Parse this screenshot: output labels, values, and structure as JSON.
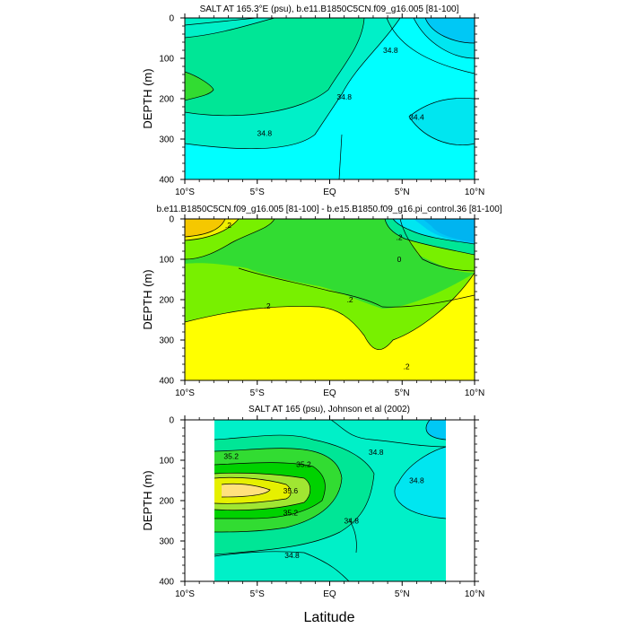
{
  "figure": {
    "xlabel": "Latitude"
  },
  "chart_data": [
    {
      "type": "contour",
      "title": "SALT AT 165.3°E (psu), b.e11.B1850C5CN.f09_g16.005 [81-100]",
      "xlabel": "",
      "ylabel": "DEPTH (m)",
      "xlim": [
        -10,
        10
      ],
      "ylim": [
        0,
        400
      ],
      "y_inverted": true,
      "xticks": [
        -10,
        -5,
        0,
        5,
        10
      ],
      "xticklabels": [
        "10°S",
        "5°S",
        "EQ",
        "5°N",
        "10°N"
      ],
      "yticks": [
        0,
        100,
        200,
        300,
        400
      ],
      "yticklabels": [
        "0",
        "100",
        "200",
        "300",
        "400"
      ],
      "contour_labels": [
        {
          "text": "34.8",
          "x": 4.2,
          "y": 80
        },
        {
          "text": "34.8",
          "x": 1.0,
          "y": 195
        },
        {
          "text": "34.8",
          "x": -4.5,
          "y": 285
        },
        {
          "text": "34.4",
          "x": 6.0,
          "y": 245
        }
      ]
    },
    {
      "type": "contour",
      "title": "b.e11.B1850C5CN.f09_g16.005 [81-100] - b.e15.B1850.f09_g16.pi_control.36 [81-100]",
      "xlabel": "",
      "ylabel": "DEPTH (m)",
      "xlim": [
        -10,
        10
      ],
      "ylim": [
        0,
        400
      ],
      "y_inverted": true,
      "xticks": [
        -10,
        -5,
        0,
        5,
        10
      ],
      "xticklabels": [
        "10°S",
        "5°S",
        "EQ",
        "5°N",
        "10°N"
      ],
      "yticks": [
        0,
        100,
        200,
        300,
        400
      ],
      "yticklabels": [
        "0",
        "100",
        "200",
        "300",
        "400"
      ],
      "contour_labels": [
        {
          "text": ".2",
          "x": -7.0,
          "y": 15
        },
        {
          "text": ".2",
          "x": 4.8,
          "y": 45
        },
        {
          "text": "0",
          "x": 4.8,
          "y": 100
        },
        {
          "text": ".2",
          "x": -4.3,
          "y": 215
        },
        {
          "text": ".2",
          "x": 1.4,
          "y": 200
        },
        {
          "text": ".2",
          "x": 5.3,
          "y": 365
        }
      ]
    },
    {
      "type": "contour",
      "title": "SALT AT 165 (psu), Johnson et al (2002)",
      "xlabel": "Latitude",
      "ylabel": "DEPTH (m)",
      "xlim": [
        -10,
        10
      ],
      "ylim": [
        0,
        400
      ],
      "y_inverted": true,
      "data_x_range": [
        -8,
        8
      ],
      "xticks": [
        -10,
        -5,
        0,
        5,
        10
      ],
      "xticklabels": [
        "10°S",
        "5°S",
        "EQ",
        "5°N",
        "10°N"
      ],
      "yticks": [
        0,
        100,
        200,
        300,
        400
      ],
      "yticklabels": [
        "0",
        "100",
        "200",
        "300",
        "400"
      ],
      "contour_labels": [
        {
          "text": "35.2",
          "x": -6.8,
          "y": 90
        },
        {
          "text": "35.2",
          "x": -1.8,
          "y": 110
        },
        {
          "text": "35.6",
          "x": -2.7,
          "y": 175
        },
        {
          "text": "35.2",
          "x": -2.7,
          "y": 230
        },
        {
          "text": "34.8",
          "x": 3.2,
          "y": 80
        },
        {
          "text": "34.8",
          "x": 6.0,
          "y": 150
        },
        {
          "text": "34.8",
          "x": 1.5,
          "y": 250
        },
        {
          "text": "34.8",
          "x": -2.6,
          "y": 335
        }
      ]
    }
  ]
}
